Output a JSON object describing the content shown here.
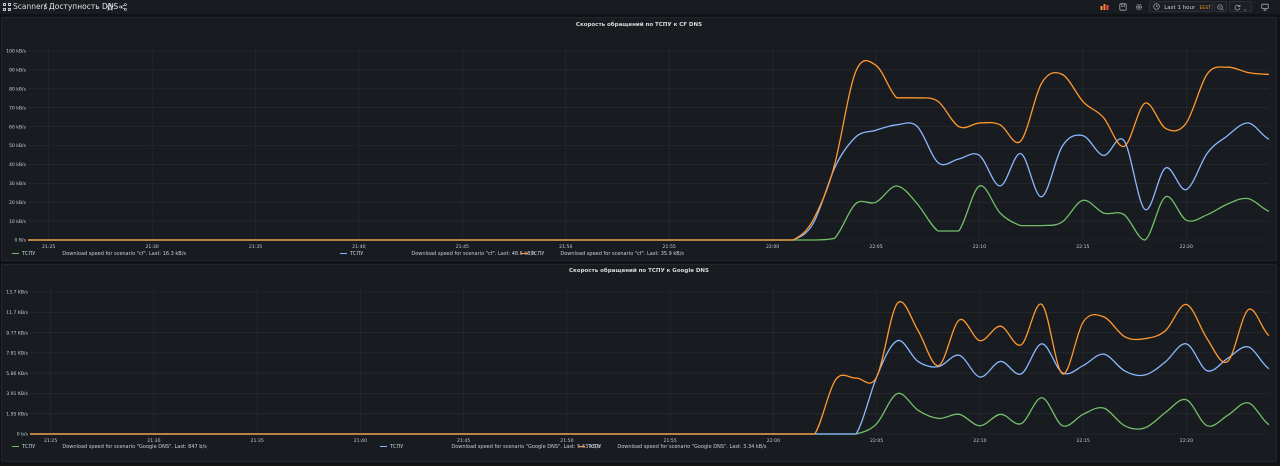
{
  "breadcrumb": {
    "folder": "Scanners",
    "separator": "/",
    "dashboard": "Доступность DNS"
  },
  "toolbar": {
    "time_range": "Last 1 hour",
    "timezone": "EEST"
  },
  "colors": {
    "green": "#73bf69",
    "blue": "#8ab8ff",
    "orange": "#ff9830"
  },
  "panels": [
    {
      "title": "Скорость обращений по ТСПУ к CF DNS",
      "legend": [
        {
          "name": "ТСПУ",
          "text": "Download speed for scenario \"cf\".   Last: 16.3 kB/s",
          "color": "green"
        },
        {
          "name": "ТСПУ",
          "text": "Download speed for scenario \"cf\".   Last: 48.6 kB/s",
          "color": "blue"
        },
        {
          "name": "ТСПУ",
          "text": "Download speed for scenario \"cf\".   Last: 35.9 kB/s",
          "color": "orange"
        }
      ]
    },
    {
      "title": "Скорость обращений по ТСПУ к Google DNS",
      "legend": [
        {
          "name": "ТСПУ",
          "text": "Download speed for scenario \"Google DNS\".   Last: 847 b/s",
          "color": "green"
        },
        {
          "name": "ТСПУ",
          "text": "Download speed for scenario \"Google DNS\".   Last: 5.63 kB/s",
          "color": "blue"
        },
        {
          "name": "ТСПУ",
          "text": "Download speed for scenario \"Google DNS\".   Last: 3.34 kB/s",
          "color": "orange"
        }
      ]
    }
  ],
  "chart_data": [
    {
      "type": "line",
      "title": "Скорость обращений по ТСПУ к CF DNS",
      "x": [
        "21:24",
        "21:27",
        "21:30",
        "21:33",
        "21:36",
        "21:39",
        "21:42",
        "21:45",
        "21:48",
        "21:51",
        "21:54",
        "21:57",
        "22:00",
        "22:01",
        "22:02",
        "22:03",
        "22:04",
        "22:05",
        "22:06",
        "22:07",
        "22:08",
        "22:09",
        "22:10",
        "22:11",
        "22:12",
        "22:13",
        "22:14",
        "22:15",
        "22:16",
        "22:17",
        "22:18",
        "22:19",
        "22:20",
        "22:21",
        "22:22",
        "22:23",
        "22:24"
      ],
      "xticks": [
        "21:25",
        "21:30",
        "21:35",
        "21:40",
        "21:45",
        "21:50",
        "21:55",
        "22:00",
        "22:05",
        "22:10",
        "22:15",
        "22:20"
      ],
      "yticks": [
        "0 B/s",
        "10 kB/s",
        "20 kB/s",
        "30 kB/s",
        "40 kB/s",
        "50 kB/s",
        "60 kB/s",
        "70 kB/s",
        "80 kB/s",
        "90 kB/s",
        "100 kB/s"
      ],
      "ylim": [
        0,
        105
      ],
      "series": [
        {
          "name": "ТСПУ",
          "color": "green",
          "values": [
            0,
            0,
            0,
            0,
            0,
            0,
            0,
            0,
            0,
            0,
            0,
            0,
            0,
            0,
            0,
            1,
            20,
            21,
            30,
            20,
            5,
            5,
            30,
            15,
            8,
            8,
            10,
            22,
            15,
            14,
            0,
            24,
            11,
            14,
            20,
            23,
            16
          ]
        },
        {
          "name": "ТСПУ",
          "color": "blue",
          "values": [
            0,
            0,
            0,
            0,
            0,
            0,
            0,
            0,
            0,
            0,
            0,
            0,
            0,
            0,
            10,
            40,
            57,
            61,
            64,
            63,
            43,
            45,
            47,
            30,
            48,
            24,
            52,
            58,
            47,
            55,
            17,
            40,
            28,
            48,
            58,
            65,
            56
          ]
        },
        {
          "name": "ТСПУ",
          "color": "orange",
          "values": [
            0,
            0,
            0,
            0,
            0,
            0,
            0,
            0,
            0,
            0,
            0,
            0,
            0,
            0,
            12,
            42,
            93,
            97,
            79,
            79,
            77,
            63,
            65,
            64,
            55,
            87,
            92,
            77,
            68,
            52,
            76,
            62,
            65,
            92,
            96,
            93,
            92
          ]
        }
      ]
    },
    {
      "type": "line",
      "title": "Скорость обращений по ТСПУ к Google DNS",
      "x": [
        "21:24",
        "21:27",
        "21:30",
        "21:33",
        "21:36",
        "21:39",
        "21:42",
        "21:45",
        "21:48",
        "21:51",
        "21:54",
        "21:57",
        "22:00",
        "22:01",
        "22:02",
        "22:03",
        "22:04",
        "22:05",
        "22:06",
        "22:07",
        "22:08",
        "22:09",
        "22:10",
        "22:11",
        "22:12",
        "22:13",
        "22:14",
        "22:15",
        "22:16",
        "22:17",
        "22:18",
        "22:19",
        "22:20",
        "22:21",
        "22:22",
        "22:23",
        "22:24"
      ],
      "xticks": [
        "21:25",
        "21:30",
        "21:35",
        "21:40",
        "21:45",
        "21:50",
        "21:55",
        "22:00",
        "22:05",
        "22:10",
        "22:15",
        "22:20"
      ],
      "yticks": [
        "0 b/s",
        "1.95 KB/s",
        "3.91 KB/s",
        "5.86 KB/s",
        "7.81 KB/s",
        "9.77 KB/s",
        "11.7 KB/s",
        "13.7 KB/s"
      ],
      "ylim": [
        0,
        13.7
      ],
      "series": [
        {
          "name": "ТСПУ",
          "color": "green",
          "values": [
            0,
            0,
            0,
            0,
            0,
            0,
            0,
            0,
            0,
            0,
            0,
            0,
            0,
            0,
            0,
            0,
            0,
            1.0,
            3.9,
            2.3,
            1.5,
            1.9,
            0.8,
            1.9,
            1.0,
            3.5,
            0.8,
            1.9,
            2.5,
            0.8,
            0.6,
            2.1,
            3.3,
            0.8,
            1.8,
            3.0,
            0.9
          ]
        },
        {
          "name": "ТСПУ",
          "color": "blue",
          "values": [
            0,
            0,
            0,
            0,
            0,
            0,
            0,
            0,
            0,
            0,
            0,
            0,
            0,
            0,
            0,
            0,
            0,
            5.5,
            9.0,
            7.0,
            6.5,
            7.6,
            5.5,
            7.0,
            5.8,
            8.7,
            5.9,
            6.6,
            7.7,
            6.1,
            5.7,
            7.0,
            8.7,
            6.1,
            7.3,
            8.4,
            6.3
          ]
        },
        {
          "name": "ТСПУ",
          "color": "orange",
          "values": [
            0,
            0,
            0,
            0,
            0,
            0,
            0,
            0,
            0,
            0,
            0,
            0,
            0,
            0,
            0,
            5.2,
            5.4,
            5.5,
            12.6,
            10.0,
            6.6,
            11.0,
            9.0,
            10.4,
            8.6,
            12.5,
            5.8,
            10.8,
            11.3,
            9.4,
            9.2,
            10.0,
            12.5,
            9.2,
            7.0,
            12.0,
            9.5
          ]
        }
      ]
    }
  ]
}
